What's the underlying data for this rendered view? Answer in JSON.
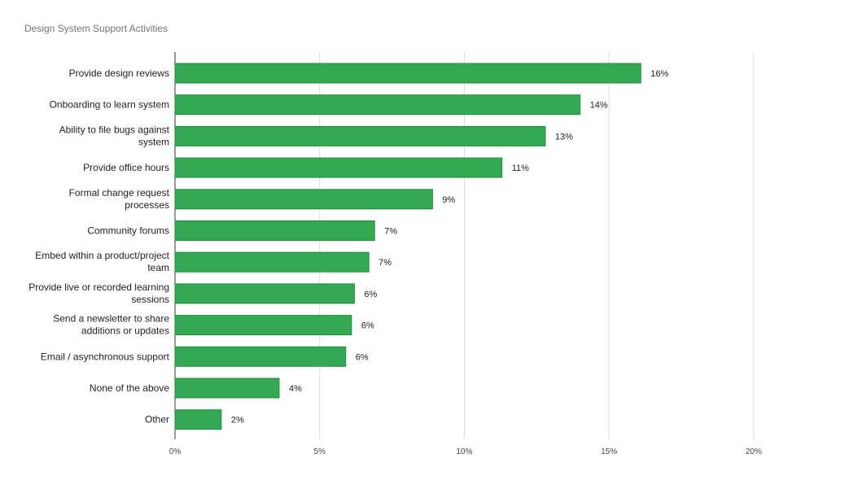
{
  "chart_data": {
    "type": "bar",
    "orientation": "horizontal",
    "title": "Design System Support Activities",
    "categories": [
      [
        "Provide design reviews"
      ],
      [
        "Onboarding to learn system"
      ],
      [
        "Ability to file bugs against",
        "system"
      ],
      [
        "Provide office hours"
      ],
      [
        "Formal change request",
        "processes"
      ],
      [
        "Community forums"
      ],
      [
        "Embed within a product/project",
        "team"
      ],
      [
        "Provide live or recorded learning",
        "sessions"
      ],
      [
        "Send a newsletter to share",
        "additions or updates"
      ],
      [
        "Email / asynchronous support"
      ],
      [
        "None of the above"
      ],
      [
        "Other"
      ]
    ],
    "values": [
      16.1,
      14.0,
      12.8,
      11.3,
      8.9,
      6.9,
      6.7,
      6.2,
      6.1,
      5.9,
      3.6,
      1.6
    ],
    "value_labels": [
      "16%",
      "14%",
      "13%",
      "11%",
      "9%",
      "7%",
      "7%",
      "6%",
      "6%",
      "6%",
      "4%",
      "2%"
    ],
    "xlim": [
      0,
      20
    ],
    "xticks": [
      0,
      5,
      10,
      15,
      20
    ],
    "xtick_labels": [
      "0%",
      "5%",
      "10%",
      "15%",
      "20%"
    ],
    "grid": true,
    "legend": "none",
    "bar_color": "#34a853",
    "bar_border_color": "#1e8e3e",
    "grid_color": "#dddddd"
  }
}
